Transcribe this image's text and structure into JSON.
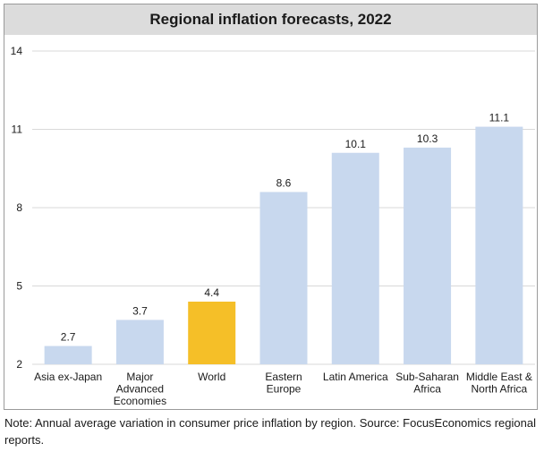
{
  "chart_data": {
    "type": "bar",
    "title": "Regional inflation forecasts, 2022",
    "categories": [
      [
        "Asia ex-Japan"
      ],
      [
        "Major",
        "Advanced",
        "Economies"
      ],
      [
        "World"
      ],
      [
        "Eastern",
        "Europe"
      ],
      [
        "Latin America"
      ],
      [
        "Sub-Saharan",
        "Africa"
      ],
      [
        "Middle East &",
        "North Africa"
      ]
    ],
    "values": [
      2.7,
      3.7,
      4.4,
      8.6,
      10.1,
      10.3,
      11.1
    ],
    "value_labels": [
      "2.7",
      "3.7",
      "4.4",
      "8.6",
      "10.1",
      "10.3",
      "11.1"
    ],
    "highlight_index": 2,
    "ylim": [
      2,
      14
    ],
    "yticks": [
      2,
      5,
      8,
      11,
      14
    ],
    "grid": true,
    "colors": {
      "bar": "#c8d8ee",
      "highlight": "#f5bf28",
      "grid": "#d9d9d9"
    }
  },
  "note": "Note: Annual average variation in consumer price inflation by region. Source: FocusEconomics regional reports."
}
